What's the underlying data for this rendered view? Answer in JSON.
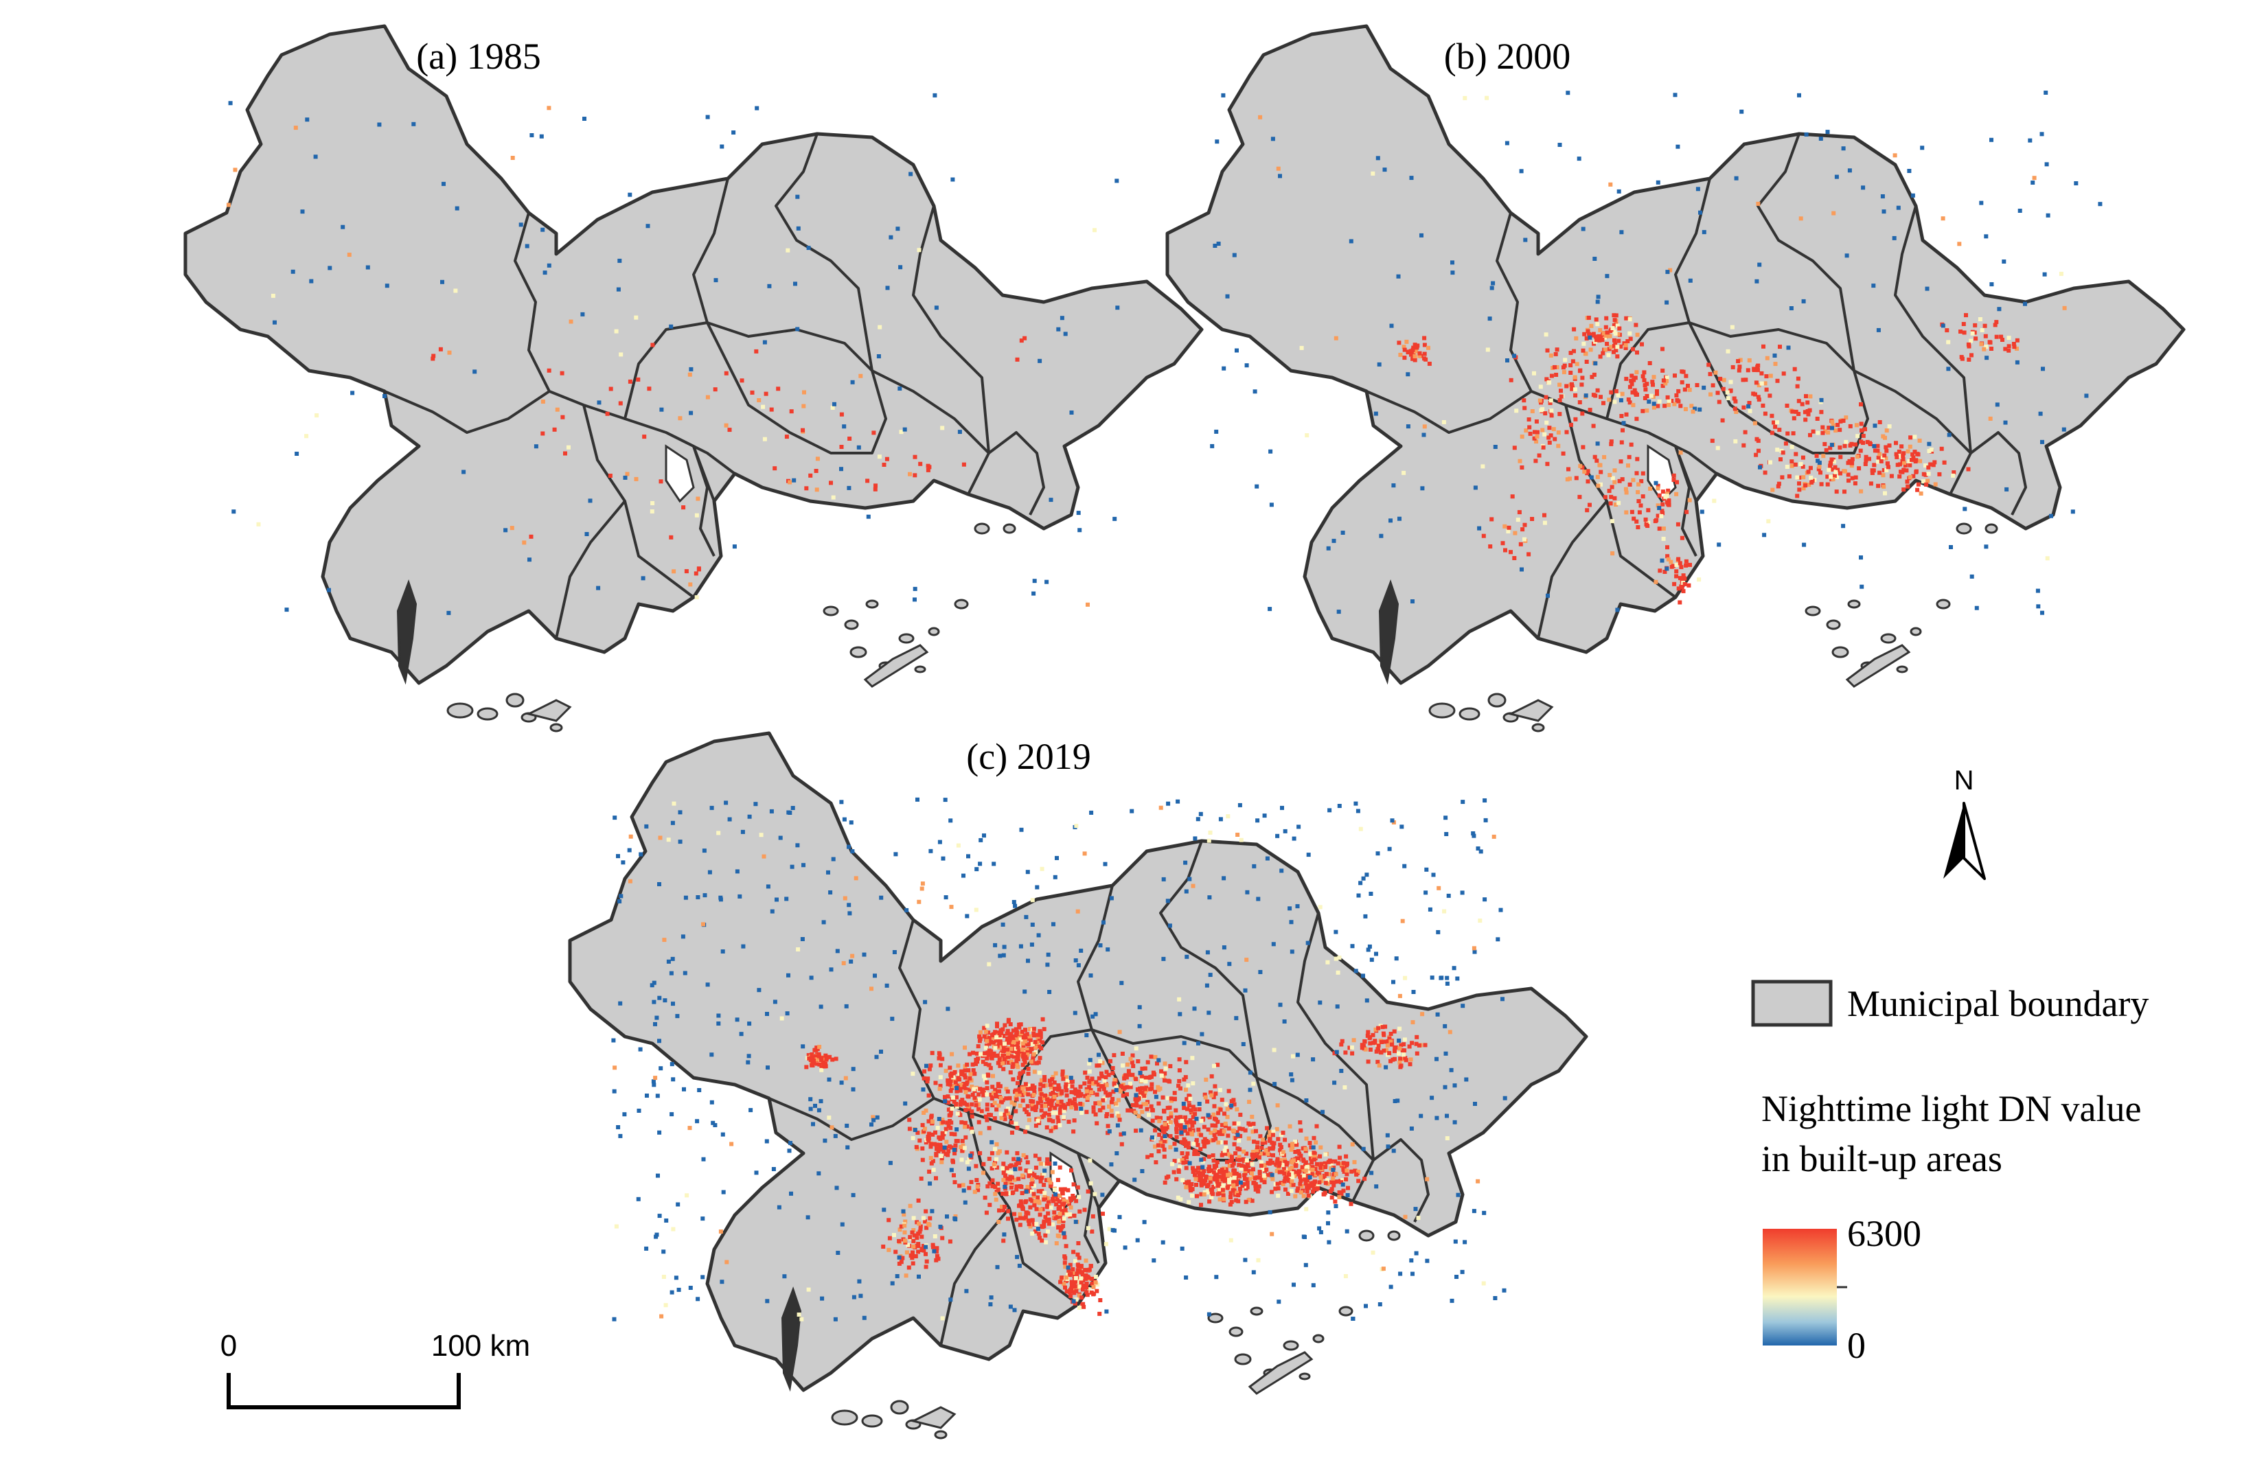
{
  "panels": [
    {
      "id": "a",
      "label": "(a) 1985",
      "intensity": 1
    },
    {
      "id": "b",
      "label": "(b) 2000",
      "intensity": 2
    },
    {
      "id": "c",
      "label": "(c) 2019",
      "intensity": 3
    }
  ],
  "legend": {
    "boundary_label": "Municipal boundary",
    "ntl_title_line1": "Nighttime light DN value",
    "ntl_title_line2": "in built-up areas",
    "max_label": "6300",
    "min_label": "0",
    "ramp_colors": [
      "#2166ac",
      "#9ec7dc",
      "#fbf6c1",
      "#f99c5a",
      "#f03d2d"
    ]
  },
  "north_arrow": {
    "label": "N"
  },
  "scale_bar": {
    "start_label": "0",
    "end_label": "100 km"
  },
  "colors": {
    "land": "#cccccc",
    "boundary": "#333333",
    "light_high": "#f03d2d",
    "light_mid": "#f99c5a",
    "light_pale": "#fbf6c1",
    "light_low": "#2166ac"
  }
}
